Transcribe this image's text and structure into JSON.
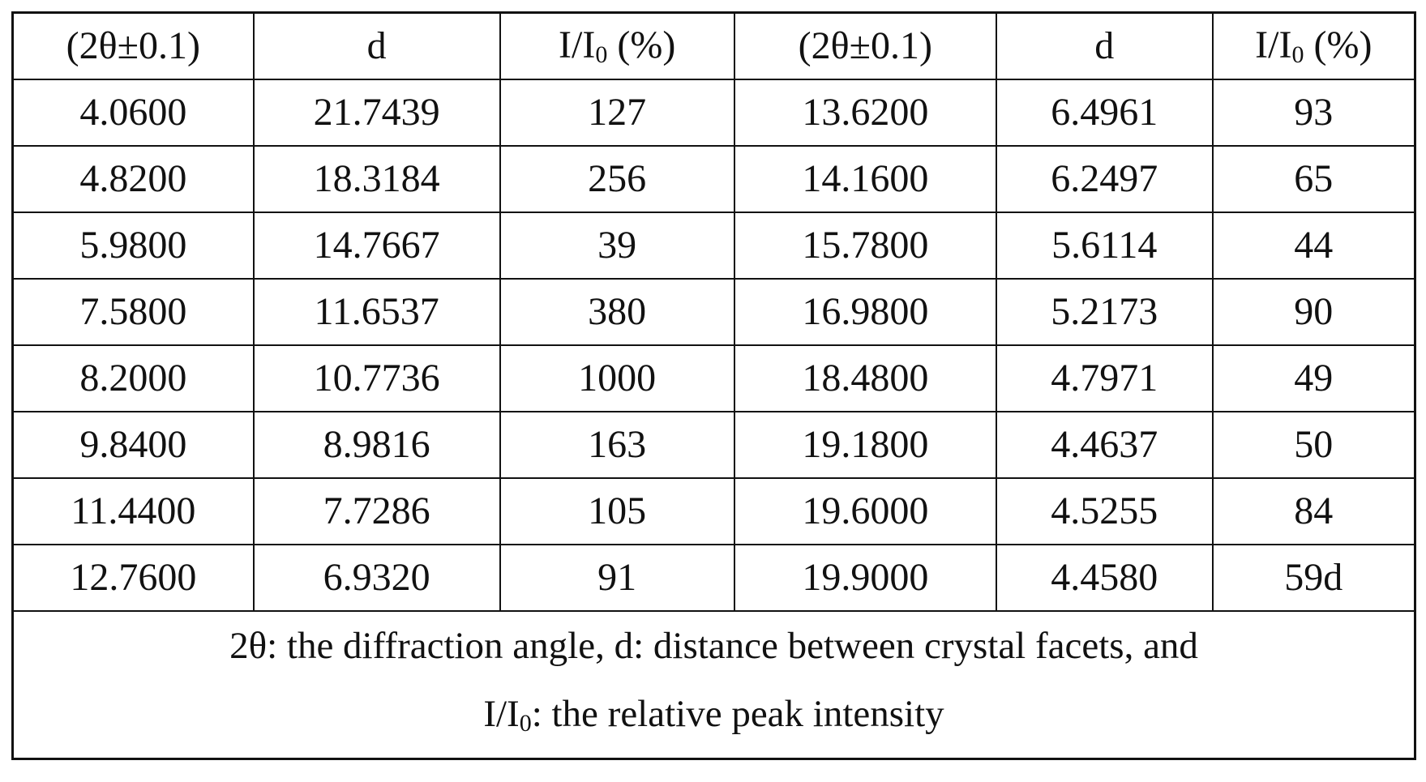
{
  "table": {
    "headers": [
      {
        "main": "(2θ±0.1)",
        "sub": "",
        "tail": ""
      },
      {
        "main": "d",
        "sub": "",
        "tail": ""
      },
      {
        "main": "I/I",
        "sub": "0",
        "tail": " (%)"
      },
      {
        "main": "(2θ±0.1)",
        "sub": "",
        "tail": ""
      },
      {
        "main": "d",
        "sub": "",
        "tail": ""
      },
      {
        "main": "I/I",
        "sub": "0",
        "tail": " (%)"
      }
    ],
    "rows": [
      [
        "4.0600",
        "21.7439",
        "127",
        "13.6200",
        "6.4961",
        "93"
      ],
      [
        "4.8200",
        "18.3184",
        "256",
        "14.1600",
        "6.2497",
        "65"
      ],
      [
        "5.9800",
        "14.7667",
        "39",
        "15.7800",
        "5.6114",
        "44"
      ],
      [
        "7.5800",
        "11.6537",
        "380",
        "16.9800",
        "5.2173",
        "90"
      ],
      [
        "8.2000",
        "10.7736",
        "1000",
        "18.4800",
        "4.7971",
        "49"
      ],
      [
        "9.8400",
        "8.9816",
        "163",
        "19.1800",
        "4.4637",
        "50"
      ],
      [
        "11.4400",
        "7.7286",
        "105",
        "19.6000",
        "4.5255",
        "84"
      ],
      [
        "12.7600",
        "6.9320",
        "91",
        "19.9000",
        "4.4580",
        "59d"
      ]
    ],
    "note": {
      "line1": "2θ: the diffraction angle, d: distance between crystal facets, and",
      "line2_main": "I/I",
      "line2_sub": "0",
      "line2_tail": ": the relative peak intensity"
    }
  }
}
